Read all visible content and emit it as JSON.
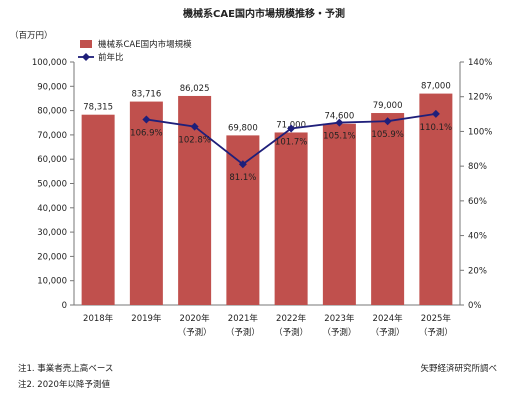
{
  "chart_data": {
    "type": "bar",
    "title": "機械系CAE国内市場規模推移・予測",
    "unit_label": "（百万円）",
    "categories": [
      "2018年",
      "2019年",
      "2020年",
      "2021年",
      "2022年",
      "2023年",
      "2024年",
      "2025年"
    ],
    "category_sublabels": [
      "",
      "",
      "（予測）",
      "（予測）",
      "（予測）",
      "（予測）",
      "（予測）",
      "（予測）"
    ],
    "series": [
      {
        "name": "機械系CAE国内市場規模",
        "type": "bar",
        "axis": "left",
        "color": "#c0504d",
        "values": [
          78315,
          83716,
          86025,
          69800,
          71000,
          74600,
          79000,
          87000
        ],
        "labels": [
          "78,315",
          "83,716",
          "86,025",
          "69,800",
          "71,000",
          "74,600",
          "79,000",
          "87,000"
        ]
      },
      {
        "name": "前年比",
        "type": "line",
        "axis": "right",
        "color": "#1f1f7a",
        "values": [
          null,
          106.9,
          102.8,
          81.1,
          101.7,
          105.1,
          105.9,
          110.1
        ],
        "labels": [
          "",
          "106.9%",
          "102.8%",
          "81.1%",
          "101.7%",
          "105.1%",
          "105.9%",
          "110.1%"
        ]
      }
    ],
    "y_left": {
      "min": 0,
      "max": 100000,
      "step": 10000,
      "ticks": [
        "0",
        "10,000",
        "20,000",
        "30,000",
        "40,000",
        "50,000",
        "60,000",
        "70,000",
        "80,000",
        "90,000",
        "100,000"
      ]
    },
    "y_right": {
      "min": 0,
      "max": 140,
      "step": 20,
      "ticks": [
        "0%",
        "20%",
        "40%",
        "60%",
        "80%",
        "100%",
        "120%",
        "140%"
      ]
    },
    "grid": false,
    "legend_position": "top-left"
  },
  "notes": {
    "note1": "注1. 事業者売上高ベース",
    "note2": "注2. 2020年以降予測値",
    "source": "矢野経済研究所調べ"
  }
}
